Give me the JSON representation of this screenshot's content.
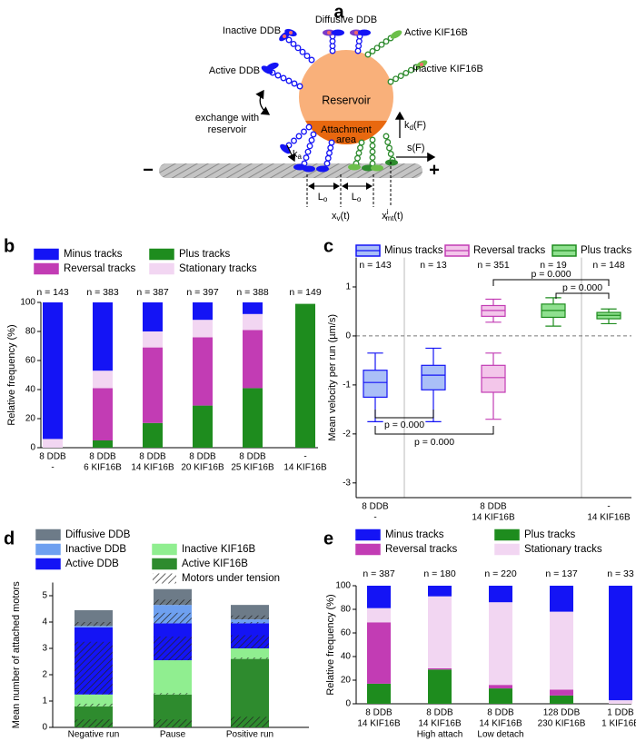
{
  "diagram": {
    "panel_label": "a",
    "labels": {
      "inactive_ddb": "Inactive DDB",
      "diffusive_ddb": "Diffusive DDB",
      "active_kif": "Active KIF16B",
      "active_ddb": "Active DDB",
      "inactive_kif": "Inactive KIF16B",
      "reservoir": "Reservoir",
      "attachment": [
        "Attachment",
        "area"
      ],
      "exchange": [
        "exchange with",
        "reservoir"
      ],
      "kd": [
        "k",
        "d",
        "(F)"
      ],
      "sf": "s(F)",
      "ka": [
        "k",
        "a"
      ],
      "lo1": [
        "L",
        "o"
      ],
      "lo2": [
        "L",
        "o"
      ],
      "xv": [
        "x",
        "v",
        "(t)"
      ],
      "xmt": [
        "x",
        "i",
        "mt",
        "(t)"
      ],
      "minus": "−",
      "plus": "+"
    }
  },
  "chart_data": [
    {
      "panel_label": "b",
      "type": "stacked_bar",
      "ylabel": "Relative frequency (%)",
      "categories": [
        [
          "8 DDB",
          "-"
        ],
        [
          "8 DDB",
          "6 KIF16B"
        ],
        [
          "8 DDB",
          "14 KIF16B"
        ],
        [
          "8 DDB",
          "20 KIF16B"
        ],
        [
          "8 DDB",
          "25 KIF16B"
        ],
        [
          "-",
          "14 KIF16B"
        ]
      ],
      "annotations": [
        "n = 143",
        "n = 383",
        "n = 387",
        "n = 397",
        "n = 388",
        "n = 149"
      ],
      "series": [
        {
          "name": "Plus tracks",
          "color": "#1e8c1e",
          "values": [
            0,
            5,
            17,
            29,
            41,
            99
          ]
        },
        {
          "name": "Reversal tracks",
          "color": "#c23cb4",
          "values": [
            0,
            36,
            52,
            47,
            40,
            0
          ]
        },
        {
          "name": "Stationary tracks",
          "color": "#f2d6f2",
          "values": [
            6,
            12,
            11,
            12,
            11,
            0
          ]
        },
        {
          "name": "Minus tracks",
          "color": "#1414f5",
          "values": [
            94,
            47,
            20,
            12,
            8,
            0
          ]
        }
      ],
      "ylim": [
        0,
        100
      ],
      "yticks": [
        0,
        20,
        40,
        60,
        80,
        100
      ]
    },
    {
      "panel_label": "c",
      "type": "box",
      "ylabel": "Mean velocity per run (µm/s)",
      "categories": [
        [
          "8 DDB",
          "-"
        ],
        null,
        [
          "8 DDB",
          "14 KIF16B"
        ],
        null,
        [
          "-",
          "14 KIF16B"
        ]
      ],
      "n_labels": [
        "n = 143",
        "n = 13",
        "n = 351",
        "n = 19",
        "n = 148"
      ],
      "series": [
        {
          "name": "Minus tracks",
          "color": "#1414f5",
          "fill": "#aabff7",
          "boxes": [
            [
              {
                "min": -1.75,
                "q1": -1.25,
                "median": -0.95,
                "q3": -0.7,
                "max": -0.35
              }
            ],
            [
              {
                "min": -1.75,
                "q1": -1.1,
                "median": -0.8,
                "q3": -0.6,
                "max": -0.25
              }
            ],
            null,
            null,
            null
          ]
        },
        {
          "name": "Reversal tracks",
          "color": "#c23cb4",
          "fill": "#f3c6ea",
          "boxes": [
            null,
            null,
            [
              {
                "min": 0.28,
                "q1": 0.4,
                "median": 0.52,
                "q3": 0.62,
                "max": 0.75
              },
              {
                "min": -1.7,
                "q1": -1.15,
                "median": -0.85,
                "q3": -0.6,
                "max": -0.35
              }
            ],
            null,
            null
          ]
        },
        {
          "name": "Plus tracks",
          "color": "#1e8c1e",
          "fill": "#8fe08f",
          "boxes": [
            null,
            null,
            null,
            [
              {
                "min": 0.2,
                "q1": 0.38,
                "median": 0.52,
                "q3": 0.65,
                "max": 0.78
              }
            ],
            [
              {
                "min": 0.25,
                "q1": 0.35,
                "median": 0.42,
                "q3": 0.48,
                "max": 0.55
              }
            ]
          ]
        }
      ],
      "annotations": [
        "p = 0.000",
        "p = 0.000",
        "p = 0.000",
        "p = 0.000"
      ],
      "hline": 0,
      "ylim": [
        -3.3,
        1.6
      ],
      "yticks": [
        -3,
        -2,
        -1,
        0,
        1
      ]
    },
    {
      "panel_label": "d",
      "type": "stacked_bar",
      "ylabel": "Mean number of attached motors",
      "categories": [
        [
          "Negative run"
        ],
        [
          "Pause"
        ],
        [
          "Positive run"
        ]
      ],
      "series": [
        {
          "name": "Active KIF16B",
          "color": "#2e8b2e",
          "values": [
            0.8,
            1.25,
            2.6
          ],
          "tension": [
            0.3,
            0.3,
            0.4
          ]
        },
        {
          "name": "Inactive KIF16B",
          "color": "#90ee90",
          "values": [
            0.45,
            1.3,
            0.4
          ],
          "tension": [
            0.1,
            0.05,
            0.05
          ]
        },
        {
          "name": "Active DDB",
          "color": "#1414f5",
          "values": [
            2.55,
            1.4,
            0.95
          ],
          "tension": [
            2.0,
            0.9,
            0.5
          ]
        },
        {
          "name": "Inactive DDB",
          "color": "#6ea0f0",
          "values": [
            0.05,
            0.7,
            0.15
          ],
          "tension": [
            0,
            0.4,
            0.05
          ]
        },
        {
          "name": "Diffusive DDB",
          "color": "#6d7b88",
          "values": [
            0.6,
            0.6,
            0.55
          ],
          "tension": [
            0.15,
            0.2,
            0.15
          ]
        }
      ],
      "hatch_label": "Motors under tension",
      "ylim": [
        0,
        5.5
      ],
      "yticks": [
        0,
        1,
        2,
        3,
        4,
        5
      ]
    },
    {
      "panel_label": "e",
      "type": "stacked_bar",
      "ylabel": "Relative frequency (%)",
      "categories": [
        [
          "8 DDB",
          "14 KIF16B"
        ],
        [
          "8 DDB",
          "14 KIF16B",
          "High attach"
        ],
        [
          "8 DDB",
          "14 KIF16B",
          "Low detach"
        ],
        [
          "128 DDB",
          "230 KIF16B"
        ],
        [
          "1 DDB",
          "1 KIF16B"
        ]
      ],
      "annotations": [
        "n = 387",
        "n = 180",
        "n = 220",
        "n = 137",
        "n = 33"
      ],
      "series": [
        {
          "name": "Plus tracks",
          "color": "#1e8c1e",
          "values": [
            17,
            29,
            13,
            7,
            0
          ]
        },
        {
          "name": "Reversal tracks",
          "color": "#c23cb4",
          "values": [
            52,
            1,
            3,
            5,
            0
          ]
        },
        {
          "name": "Stationary tracks",
          "color": "#f2d6f2",
          "values": [
            12,
            61,
            70,
            66,
            3
          ]
        },
        {
          "name": "Minus tracks",
          "color": "#1414f5",
          "values": [
            19,
            9,
            14,
            22,
            97
          ]
        }
      ],
      "ylim": [
        0,
        100
      ],
      "yticks": [
        0,
        20,
        40,
        60,
        80,
        100
      ]
    }
  ]
}
